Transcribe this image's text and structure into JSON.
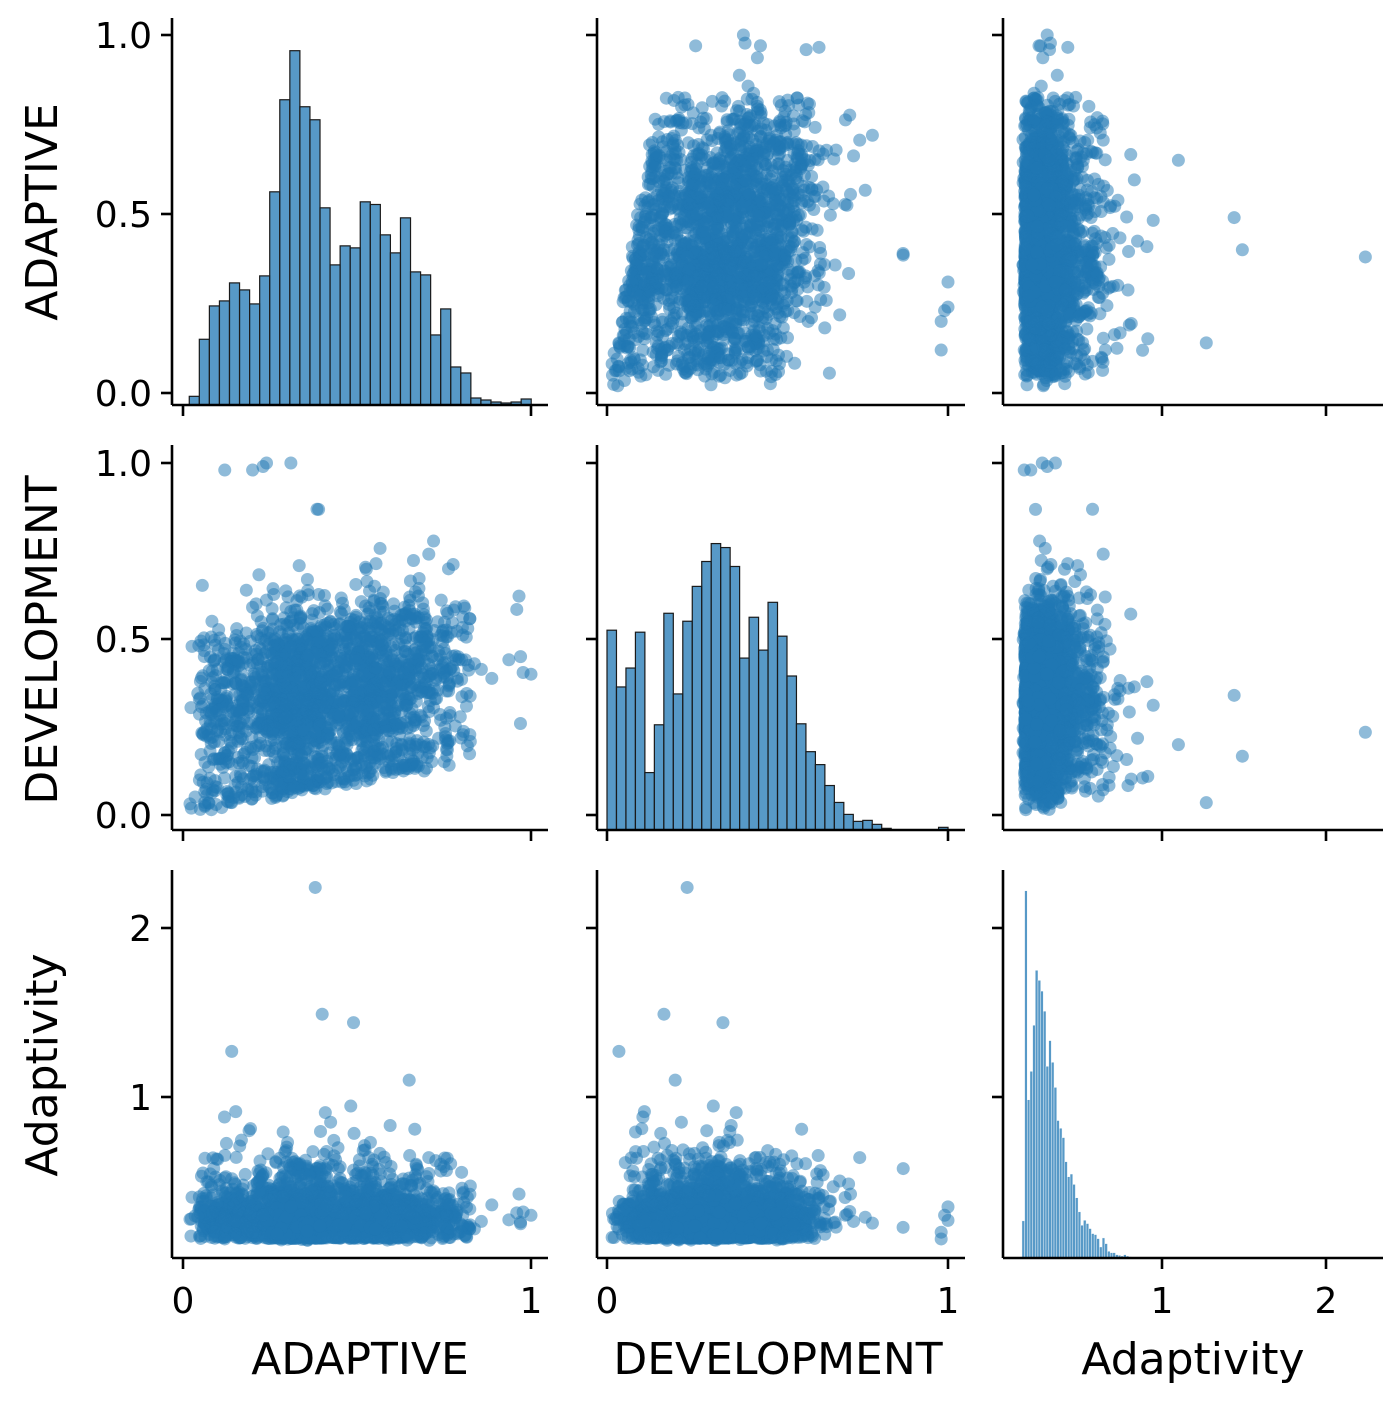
{
  "chart_data": {
    "type": "scatter",
    "layout": "pairplot 3x3 (histograms on diagonal, scatter off-diagonal)",
    "variables": [
      "ADAPTIVE",
      "DEVELOPMENT",
      "Adaptivity"
    ],
    "color": "#1f77b4",
    "scatter_alpha": 0.5,
    "grid": false,
    "legend": "none",
    "axes": {
      "ADAPTIVE": {
        "range": [
          -0.03,
          1.05
        ],
        "y_ticks": [
          "0.0",
          "0.5",
          "1.0"
        ],
        "x_ticks": [
          "0",
          "1"
        ],
        "y_tick_values": [
          0,
          0.5,
          1
        ],
        "x_tick_values": [
          0,
          1
        ]
      },
      "DEVELOPMENT": {
        "range": [
          -0.03,
          1.05
        ],
        "y_ticks": [
          "0.0",
          "0.5",
          "1.0"
        ],
        "x_ticks": [
          "0",
          "1"
        ],
        "y_tick_values": [
          0,
          0.5,
          1
        ],
        "x_tick_values": [
          0,
          1
        ]
      },
      "Adaptivity": {
        "range": [
          0.03,
          2.35
        ],
        "y_ticks": [
          "1",
          "2"
        ],
        "x_ticks": [
          "1",
          "2"
        ],
        "y_tick_values": [
          1,
          2
        ],
        "x_tick_values": [
          1,
          2
        ]
      }
    },
    "histograms": [
      {
        "variable": "ADAPTIVE",
        "bin_start": 0.018,
        "bin_width": 0.0289,
        "count_max": 1160,
        "counts": [
          26,
          197,
          297,
          312,
          366,
          345,
          303,
          387,
          639,
          915,
          1062,
          894,
          855,
          591,
          420,
          477,
          471,
          609,
          601,
          510,
          456,
          561,
          399,
          390,
          210,
          288,
          114,
          96,
          21,
          15,
          9,
          6,
          9,
          18
        ]
      },
      {
        "variable": "DEVELOPMENT",
        "bin_start": 0.0,
        "bin_width": 0.02778,
        "count_max": 1160,
        "counts": [
          602,
          431,
          488,
          596,
          173,
          317,
          653,
          410,
          629,
          734,
          809,
          863,
          851,
          794,
          518,
          641,
          542,
          686,
          584,
          464,
          320,
          236,
          197,
          134,
          83,
          47,
          26,
          29,
          17,
          5,
          0,
          0,
          0,
          0,
          0,
          8
        ]
      },
      {
        "variable": "Adaptivity",
        "bin_start": 0.146,
        "bin_width": 0.0163,
        "count_max": 1160,
        "counts": [
          111,
          1098,
          473,
          558,
          696,
          860,
          830,
          798,
          738,
          573,
          650,
          585,
          510,
          411,
          388,
          360,
          288,
          243,
          251,
          220,
          180,
          138,
          98,
          113,
          103,
          88,
          73,
          70,
          58,
          33,
          60,
          43,
          20,
          16,
          16,
          10,
          8,
          6,
          10,
          6,
          4,
          3,
          3,
          2,
          2,
          2,
          1,
          1,
          1,
          1
        ]
      }
    ],
    "outliers": [
      {
        "ADAPTIVE": 0.38,
        "DEVELOPMENT": 0.235,
        "Adaptivity": 2.24
      },
      {
        "ADAPTIVE": 0.4,
        "DEVELOPMENT": 0.167,
        "Adaptivity": 1.49
      },
      {
        "ADAPTIVE": 0.49,
        "DEVELOPMENT": 0.34,
        "Adaptivity": 1.44
      },
      {
        "ADAPTIVE": 0.14,
        "DEVELOPMENT": 0.035,
        "Adaptivity": 1.27
      },
      {
        "ADAPTIVE": 0.65,
        "DEVELOPMENT": 0.2,
        "Adaptivity": 1.1
      },
      {
        "ADAPTIVE": 0.12,
        "DEVELOPMENT": 0.98,
        "Adaptivity": 0.16
      },
      {
        "ADAPTIVE": 0.24,
        "DEVELOPMENT": 1.0,
        "Adaptivity": 0.27
      },
      {
        "ADAPTIVE": 0.31,
        "DEVELOPMENT": 1.0,
        "Adaptivity": 0.35
      },
      {
        "ADAPTIVE": 1.0,
        "DEVELOPMENT": 0.4,
        "Adaptivity": 0.3
      },
      {
        "ADAPTIVE": 0.97,
        "DEVELOPMENT": 0.45,
        "Adaptivity": 0.25
      },
      {
        "ADAPTIVE": 0.2,
        "DEVELOPMENT": 0.98,
        "Adaptivity": 0.2
      },
      {
        "ADAPTIVE": 0.23,
        "DEVELOPMENT": 0.99,
        "Adaptivity": 0.3
      }
    ],
    "labels": {
      "x": [
        "ADAPTIVE",
        "DEVELOPMENT",
        "Adaptivity"
      ],
      "y": [
        "ADAPTIVE",
        "DEVELOPMENT",
        "Adaptivity"
      ]
    }
  }
}
